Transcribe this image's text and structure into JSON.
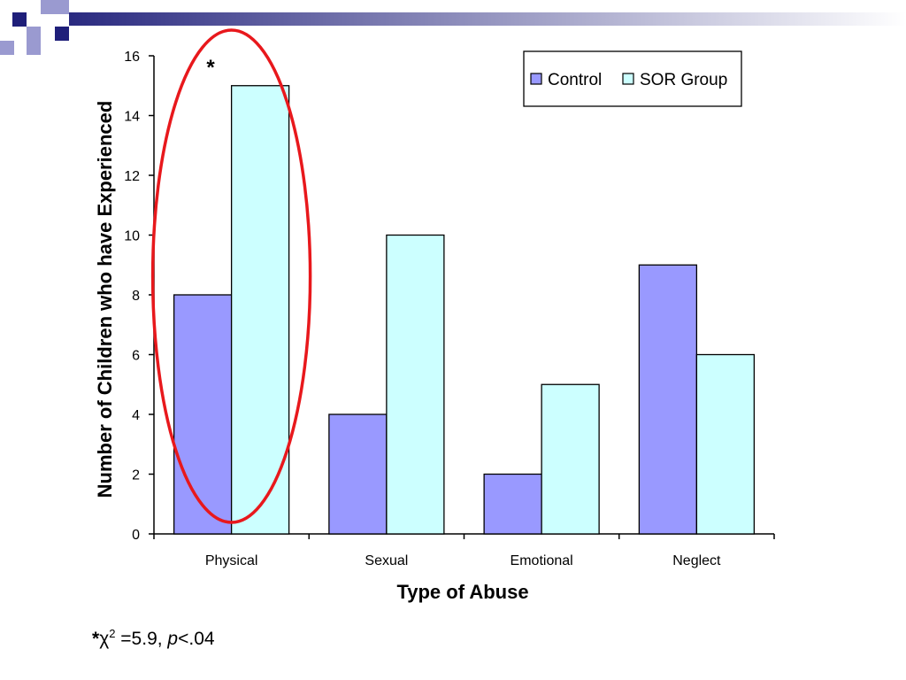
{
  "chart_data": {
    "type": "bar",
    "categories": [
      "Physical",
      "Sexual",
      "Emotional",
      "Neglect"
    ],
    "series": [
      {
        "name": "Control",
        "values": [
          8,
          4,
          2,
          9
        ],
        "color": "#9999ff"
      },
      {
        "name": "SOR Group",
        "values": [
          15,
          10,
          5,
          6
        ],
        "color": "#ccffff"
      }
    ],
    "xlabel": "Type of Abuse",
    "ylabel": "Number of Children who have Experienced",
    "ylim": [
      0,
      16
    ],
    "yticks": [
      0,
      2,
      4,
      6,
      8,
      10,
      12,
      14,
      16
    ],
    "grid": false,
    "legend_position": "top-right",
    "annotation": {
      "marker": "*",
      "target_category": "Physical",
      "highlight": "red ellipse",
      "highlight_color": "#e8181c"
    }
  },
  "footnote": {
    "star": "*",
    "chi": "χ",
    "exp": "2",
    "stat": " =5.9, ",
    "p": "p",
    "rest": "<.04"
  },
  "decor": {
    "dark": "#1f1f7a",
    "light": "#9a9ad0"
  }
}
